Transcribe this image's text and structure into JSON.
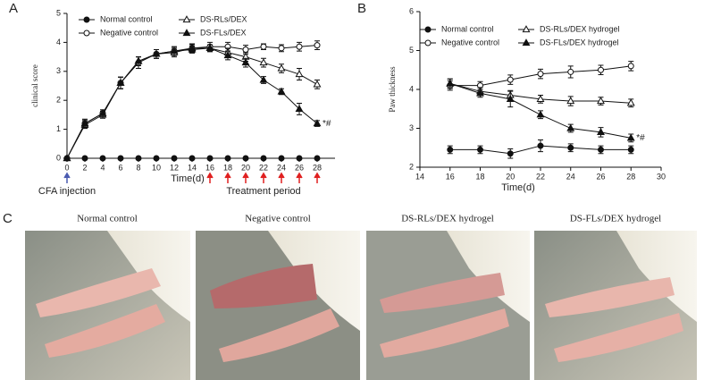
{
  "chart_data": [
    {
      "type": "line",
      "label": "A",
      "ylabel": "clinical score",
      "xlabel": "Time(d)",
      "xlim": [
        0,
        30
      ],
      "xticks": [
        0,
        2,
        4,
        6,
        8,
        10,
        12,
        14,
        16,
        18,
        20,
        22,
        24,
        26,
        28
      ],
      "ylim": [
        0,
        5
      ],
      "yticks": [
        0,
        1,
        2,
        3,
        4,
        5
      ],
      "x": [
        0,
        2,
        4,
        6,
        8,
        10,
        12,
        14,
        16,
        18,
        20,
        22,
        24,
        26,
        28
      ],
      "series": [
        {
          "name": "Normal control",
          "color": "#111",
          "marker": "filled-circle",
          "values": [
            0,
            0,
            0,
            0,
            0,
            0,
            0,
            0,
            0,
            0,
            0,
            0,
            0,
            0,
            0
          ],
          "errors": [
            0,
            0,
            0,
            0,
            0,
            0,
            0,
            0,
            0,
            0,
            0,
            0,
            0,
            0,
            0
          ]
        },
        {
          "name": "Negative control",
          "color": "#111",
          "marker": "open-circle",
          "values": [
            0,
            1.2,
            1.55,
            2.6,
            3.3,
            3.6,
            3.7,
            3.8,
            3.85,
            3.85,
            3.75,
            3.85,
            3.8,
            3.85,
            3.9
          ],
          "errors": [
            0,
            0.15,
            0.12,
            0.2,
            0.2,
            0.15,
            0.15,
            0.15,
            0.15,
            0.15,
            0.15,
            0.1,
            0.12,
            0.15,
            0.15
          ]
        },
        {
          "name": "DS-RLs/DEX",
          "color": "#111",
          "marker": "open-triangle",
          "values": [
            0,
            1.15,
            1.5,
            2.6,
            3.35,
            3.6,
            3.65,
            3.8,
            3.8,
            3.65,
            3.5,
            3.3,
            3.1,
            2.9,
            2.55
          ],
          "errors": [
            0,
            0.12,
            0.12,
            0.2,
            0.15,
            0.15,
            0.15,
            0.12,
            0.12,
            0.15,
            0.15,
            0.15,
            0.15,
            0.2,
            0.15
          ]
        },
        {
          "name": "DS-FLs/DEX",
          "color": "#111",
          "marker": "filled-triangle",
          "values": [
            0,
            1.2,
            1.55,
            2.6,
            3.35,
            3.6,
            3.7,
            3.75,
            3.8,
            3.55,
            3.3,
            2.7,
            2.3,
            1.7,
            1.2
          ],
          "errors": [
            0,
            0.12,
            0.12,
            0.2,
            0.15,
            0.15,
            0.15,
            0.12,
            0.12,
            0.15,
            0.15,
            0.12,
            0.1,
            0.2,
            0.1
          ]
        }
      ],
      "annotation": "*#",
      "markers": {
        "injection": 0,
        "injection_label": "CFA injection",
        "treatment": [
          16,
          18,
          20,
          22,
          24,
          26,
          28
        ],
        "treatment_label": "Treatment period"
      }
    },
    {
      "type": "line",
      "label": "B",
      "ylabel": "Paw thickness",
      "xlabel": "Time(d)",
      "xlim": [
        14,
        30
      ],
      "xticks": [
        14,
        16,
        18,
        20,
        22,
        24,
        26,
        28,
        30
      ],
      "ylim": [
        2,
        6
      ],
      "yticks": [
        2,
        3,
        4,
        5,
        6
      ],
      "x": [
        16,
        18,
        20,
        22,
        24,
        26,
        28
      ],
      "series": [
        {
          "name": "Normal control",
          "color": "#111",
          "marker": "filled-circle",
          "values": [
            2.45,
            2.45,
            2.35,
            2.55,
            2.5,
            2.45,
            2.45
          ],
          "errors": [
            0.1,
            0.1,
            0.12,
            0.15,
            0.1,
            0.1,
            0.1
          ]
        },
        {
          "name": "Negative control",
          "color": "#111",
          "marker": "open-circle",
          "values": [
            4.1,
            4.1,
            4.25,
            4.4,
            4.45,
            4.5,
            4.6
          ],
          "errors": [
            0.12,
            0.1,
            0.12,
            0.12,
            0.15,
            0.12,
            0.12
          ]
        },
        {
          "name": "DS-RLs/DEX hydrogel",
          "color": "#111",
          "marker": "open-triangle",
          "values": [
            4.15,
            3.95,
            3.85,
            3.75,
            3.7,
            3.7,
            3.65
          ],
          "errors": [
            0.12,
            0.1,
            0.12,
            0.1,
            0.12,
            0.1,
            0.1
          ]
        },
        {
          "name": "DS-FLs/DEX hydrogel",
          "color": "#111",
          "marker": "filled-triangle",
          "values": [
            4.15,
            3.9,
            3.75,
            3.35,
            3.0,
            2.9,
            2.75
          ],
          "errors": [
            0.12,
            0.1,
            0.2,
            0.1,
            0.1,
            0.12,
            0.1
          ]
        }
      ],
      "annotation": "*#"
    }
  ],
  "photos": {
    "label": "C",
    "captions": [
      "Normal control",
      "Negative control",
      "DS-RLs/DEX hydrogel",
      "DS-FLs/DEX hydrogel"
    ]
  }
}
